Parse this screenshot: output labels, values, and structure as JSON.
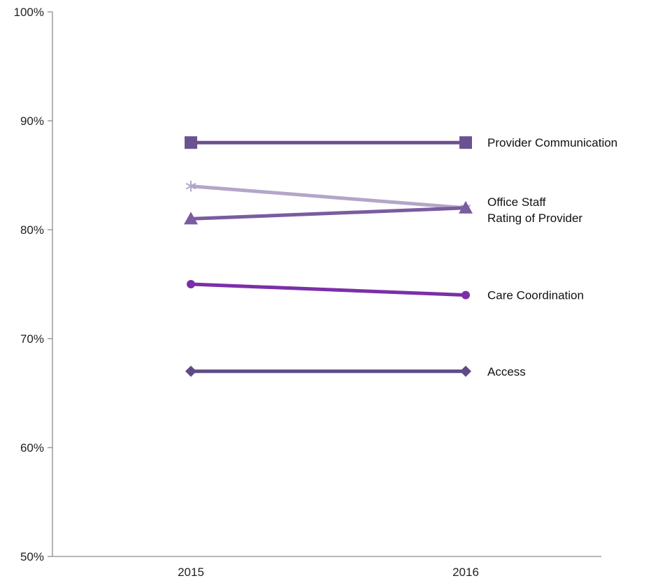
{
  "chart_data": {
    "type": "line",
    "categories": [
      "2015",
      "2016"
    ],
    "ylim": [
      0.5,
      1.0
    ],
    "yticks": [
      {
        "value": 0.5,
        "label": "50%"
      },
      {
        "value": 0.6,
        "label": "60%"
      },
      {
        "value": 0.7,
        "label": "70%"
      },
      {
        "value": 0.8,
        "label": "80%"
      },
      {
        "value": 0.9,
        "label": "90%"
      },
      {
        "value": 1.0,
        "label": "100%"
      }
    ],
    "grid": false,
    "legend": "direct labels at right end of lines",
    "series": [
      {
        "name": "Provider Communication",
        "values": [
          0.88,
          0.88
        ],
        "color": "#6b5191",
        "marker": "square"
      },
      {
        "name": "Office Staff",
        "values": [
          0.84,
          0.82
        ],
        "color": "#b3a6c9",
        "marker": "asterisk"
      },
      {
        "name": "Rating of Provider",
        "values": [
          0.81,
          0.82
        ],
        "color": "#7a5ca0",
        "marker": "triangle"
      },
      {
        "name": "Care Coordination",
        "values": [
          0.75,
          0.74
        ],
        "color": "#7b2fa8",
        "marker": "circle"
      },
      {
        "name": "Access",
        "values": [
          0.67,
          0.67
        ],
        "color": "#5f4a86",
        "marker": "diamond"
      }
    ]
  }
}
